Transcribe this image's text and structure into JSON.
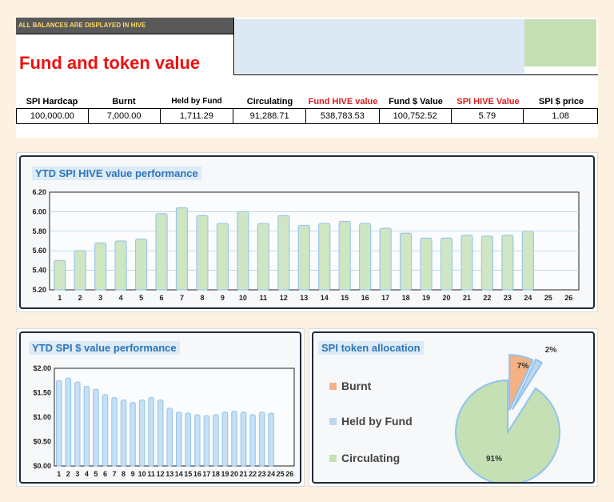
{
  "banner": "ALL BALANCES ARE DISPLAYED IN HIVE",
  "title": "Fund and token value",
  "table": {
    "headers": [
      {
        "label": "SPI Hardcap",
        "red": false,
        "small": false
      },
      {
        "label": "Burnt",
        "red": false,
        "small": false
      },
      {
        "label": "Held by Fund",
        "red": false,
        "small": true
      },
      {
        "label": "Circulating",
        "red": false,
        "small": false
      },
      {
        "label": "Fund HIVE value",
        "red": true,
        "small": false
      },
      {
        "label": "Fund $ Value",
        "red": false,
        "small": false
      },
      {
        "label": "SPI HIVE Value",
        "red": true,
        "small": false
      },
      {
        "label": "SPI $ price",
        "red": false,
        "small": false
      }
    ],
    "values": [
      "100,000.00",
      "7,000.00",
      "1,711.29",
      "91,288.71",
      "538,783.53",
      "100,752.52",
      "5.79",
      "1.08"
    ]
  },
  "chart_data": [
    {
      "type": "bar",
      "title": "YTD SPI HIVE value performance",
      "categories": [
        "1",
        "2",
        "3",
        "4",
        "5",
        "6",
        "7",
        "8",
        "9",
        "10",
        "11",
        "12",
        "13",
        "14",
        "15",
        "16",
        "17",
        "18",
        "19",
        "20",
        "21",
        "22",
        "23",
        "24",
        "25",
        "26"
      ],
      "values": [
        5.5,
        5.6,
        5.68,
        5.7,
        5.72,
        5.98,
        6.04,
        5.96,
        5.88,
        6.0,
        5.88,
        5.96,
        5.86,
        5.88,
        5.9,
        5.88,
        5.83,
        5.78,
        5.73,
        5.73,
        5.76,
        5.75,
        5.76,
        5.8,
        null,
        null
      ],
      "ylim": [
        5.2,
        6.2
      ],
      "yticks": [
        "5.20",
        "5.40",
        "5.60",
        "5.80",
        "6.00",
        "6.20"
      ],
      "grid": true,
      "color": "#cfe6c2"
    },
    {
      "type": "bar",
      "title": "YTD SPI $ value performance",
      "categories": [
        "1",
        "2",
        "3",
        "4",
        "5",
        "6",
        "7",
        "8",
        "9",
        "10",
        "11",
        "12",
        "13",
        "14",
        "15",
        "16",
        "17",
        "18",
        "19",
        "20",
        "21",
        "22",
        "23",
        "24",
        "25",
        "26"
      ],
      "values": [
        1.75,
        1.8,
        1.72,
        1.63,
        1.57,
        1.46,
        1.4,
        1.35,
        1.3,
        1.35,
        1.4,
        1.35,
        1.18,
        1.1,
        1.08,
        1.05,
        1.03,
        1.05,
        1.1,
        1.12,
        1.1,
        1.05,
        1.1,
        1.08,
        null,
        null
      ],
      "ylim": [
        0,
        2.0
      ],
      "yticks": [
        "$0.00",
        "$0.50",
        "$1.00",
        "$1.50",
        "$2.00"
      ],
      "grid": false,
      "color": "#c6e0f4"
    },
    {
      "type": "pie",
      "title": "SPI token allocation",
      "legend_position": "left",
      "slices": [
        {
          "name": "Burnt",
          "value": 7,
          "label": "7%",
          "color": "#f4b183"
        },
        {
          "name": "Held by Fund",
          "value": 2,
          "label": "2%",
          "color": "#bdd7ee"
        },
        {
          "name": "Circulating",
          "value": 91,
          "label": "91%",
          "color": "#c5e0b4"
        }
      ]
    }
  ]
}
